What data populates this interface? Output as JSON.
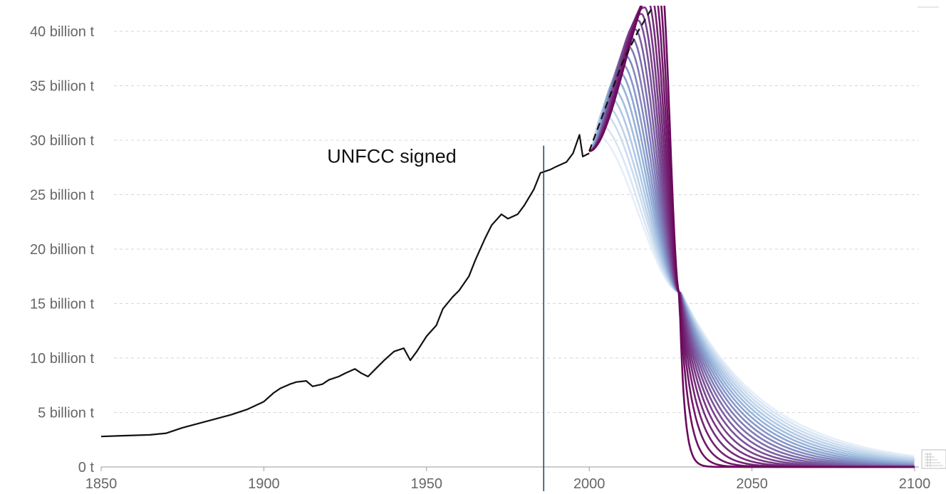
{
  "chart_data": {
    "type": "line",
    "title": "",
    "xlabel": "",
    "ylabel": "",
    "xlim": [
      1850,
      2100
    ],
    "ylim": [
      0,
      42.5
    ],
    "grid": true,
    "y_ticks": [
      {
        "value": 0,
        "label": "0 t"
      },
      {
        "value": 5,
        "label": "5 billion t"
      },
      {
        "value": 10,
        "label": "10 billion t"
      },
      {
        "value": 15,
        "label": "15 billion t"
      },
      {
        "value": 20,
        "label": "20 billion t"
      },
      {
        "value": 25,
        "label": "25 billion t"
      },
      {
        "value": 30,
        "label": "30 billion t"
      },
      {
        "value": 35,
        "label": "35 billion t"
      },
      {
        "value": 40,
        "label": "40 billion t"
      }
    ],
    "x_ticks": [
      {
        "value": 1850,
        "label": "1850"
      },
      {
        "value": 1900,
        "label": "1900"
      },
      {
        "value": 1950,
        "label": "1950"
      },
      {
        "value": 2000,
        "label": "2000"
      },
      {
        "value": 2050,
        "label": "2050"
      },
      {
        "value": 2100,
        "label": "2100"
      }
    ],
    "annotation": {
      "label": "UNFCC signed",
      "x": 1986,
      "y_top": 29.5,
      "color": "#1f4e79"
    },
    "historical": {
      "color": "#111111",
      "x": [
        1850,
        1855,
        1860,
        1865,
        1870,
        1875,
        1880,
        1885,
        1890,
        1895,
        1900,
        1903,
        1905,
        1908,
        1910,
        1913,
        1915,
        1918,
        1920,
        1923,
        1925,
        1928,
        1930,
        1932,
        1935,
        1937,
        1940,
        1943,
        1945,
        1947,
        1950,
        1953,
        1955,
        1958,
        1960,
        1963,
        1965,
        1968,
        1970,
        1973,
        1975,
        1978,
        1980,
        1983,
        1985,
        1988,
        1990,
        1993,
        1995,
        1997,
        1998,
        2000
      ],
      "y": [
        2.8,
        2.85,
        2.9,
        2.95,
        3.1,
        3.6,
        4.0,
        4.4,
        4.8,
        5.3,
        6.0,
        6.8,
        7.2,
        7.6,
        7.8,
        7.9,
        7.4,
        7.6,
        8.0,
        8.3,
        8.6,
        9.0,
        8.6,
        8.3,
        9.2,
        9.8,
        10.6,
        10.9,
        9.8,
        10.6,
        12.0,
        13.0,
        14.5,
        15.6,
        16.2,
        17.5,
        19.0,
        21.0,
        22.2,
        23.2,
        22.8,
        23.2,
        24.0,
        25.5,
        27.0,
        27.3,
        27.6,
        28.0,
        28.8,
        30.5,
        28.5,
        28.8
      ]
    },
    "projection_dashed": {
      "color": "#111111",
      "x": [
        2000,
        2005,
        2010,
        2015,
        2020
      ],
      "y": [
        29.0,
        33.0,
        37.0,
        40.0,
        42.5
      ]
    },
    "scenarios": [
      {
        "peak_year": 2002,
        "peak": 30.5,
        "color": "#e5eef9"
      },
      {
        "peak_year": 2003,
        "peak": 31.5,
        "color": "#d8e5f4"
      },
      {
        "peak_year": 2004,
        "peak": 32.5,
        "color": "#cbdcef"
      },
      {
        "peak_year": 2005,
        "peak": 33.2,
        "color": "#bdd2ea"
      },
      {
        "peak_year": 2006,
        "peak": 34.0,
        "color": "#afc8e4"
      },
      {
        "peak_year": 2007,
        "peak": 34.8,
        "color": "#a2bddf"
      },
      {
        "peak_year": 2008,
        "peak": 35.6,
        "color": "#96b1d8"
      },
      {
        "peak_year": 2009,
        "peak": 36.3,
        "color": "#8da4d0"
      },
      {
        "peak_year": 2010,
        "peak": 37.0,
        "color": "#8797c8"
      },
      {
        "peak_year": 2011,
        "peak": 37.8,
        "color": "#8389bf"
      },
      {
        "peak_year": 2012,
        "peak": 38.6,
        "color": "#807bb6"
      },
      {
        "peak_year": 2013,
        "peak": 39.4,
        "color": "#7d6dac"
      },
      {
        "peak_year": 2014,
        "peak": 40.2,
        "color": "#7b5fa2"
      },
      {
        "peak_year": 2015,
        "peak": 41.0,
        "color": "#7a5198"
      },
      {
        "peak_year": 2016,
        "peak": 41.6,
        "color": "#78448e"
      },
      {
        "peak_year": 2017,
        "peak": 42.2,
        "color": "#773884"
      },
      {
        "peak_year": 2018,
        "peak": 42.8,
        "color": "#752d7b"
      },
      {
        "peak_year": 2019,
        "peak": 43.4,
        "color": "#732272"
      },
      {
        "peak_year": 2020,
        "peak": 44.0,
        "color": "#71196a"
      },
      {
        "peak_year": 2021,
        "peak": 44.6,
        "color": "#6e1163"
      },
      {
        "peak_year": 2022,
        "peak": 45.2,
        "color": "#6a0a5c"
      }
    ],
    "scenario_shape": {
      "cross_year": 2028,
      "cross_value": 16.0,
      "end_year": 2100
    }
  }
}
